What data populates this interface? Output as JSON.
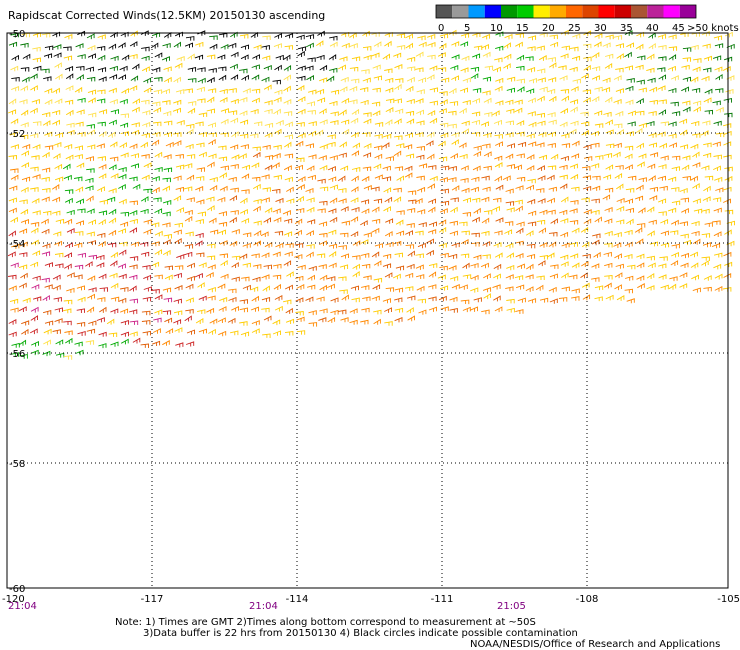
{
  "title": "Rapidscat Corrected Winds(12.5KM) 20150130 ascending",
  "legend": {
    "colors": [
      "#555555",
      "#9a9a9a",
      "#0099ff",
      "#0000ff",
      "#009900",
      "#00cc00",
      "#ffee00",
      "#ffaa00",
      "#ff6600",
      "#dd4400",
      "#ff0000",
      "#cc0000",
      "#aa5533",
      "#bb2299",
      "#ff00ff",
      "#990099"
    ],
    "labels": [
      "0",
      "5",
      "10",
      "15",
      "20",
      "25",
      "30",
      "35",
      "40",
      "45"
    ],
    "end_label": ">50 knots"
  },
  "map": {
    "lat_labels": [
      "-50",
      "-52",
      "-54",
      "-56",
      "-58",
      "-60"
    ],
    "lon_labels": [
      "-120",
      "-117",
      "-114",
      "-111",
      "-108",
      "-105"
    ],
    "time_labels": [
      "21:04",
      "21:04",
      "21:05"
    ]
  },
  "notes": {
    "line1": "Note: 1) Times are GMT 2)Times along bottom correspond to measurement at ~50S",
    "line2": "3)Data buffer is 22 hrs from 20150130 4) Black circles indicate possible contamination",
    "line3": "NOAA/NESDIS/Office of Research and Applications"
  }
}
